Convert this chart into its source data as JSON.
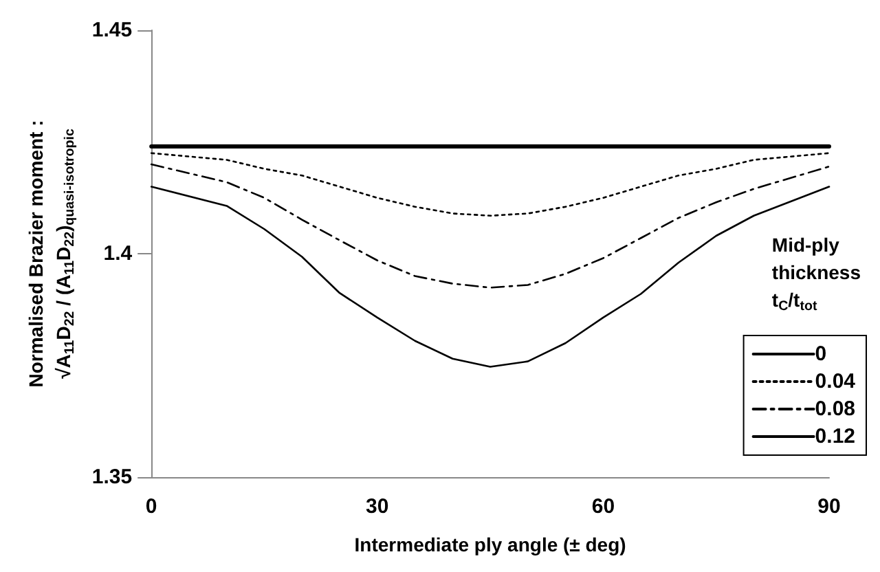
{
  "chart_data": {
    "type": "line",
    "xlabel": "Intermediate ply angle (± deg)",
    "ylabel": "Normalised Brazier moment :\n√A$_{11}$D$_{22}$ / (A$_{11}$D$_{22}$)$_{quasi-isotropic}$",
    "legend_title": "Mid-ply\nthickness\nt$_{C}$/t$_{tot}$",
    "x": [
      0,
      10,
      15,
      20,
      25,
      30,
      35,
      40,
      45,
      50,
      55,
      60,
      65,
      70,
      75,
      80,
      90
    ],
    "series": [
      {
        "name": "0",
        "color": "#000000",
        "line_style": "solid",
        "values": [
          1.424,
          1.424,
          1.424,
          1.424,
          1.424,
          1.424,
          1.424,
          1.424,
          1.424,
          1.424,
          1.424,
          1.424,
          1.424,
          1.424,
          1.424,
          1.424,
          1.424
        ]
      },
      {
        "name": "0.04",
        "color": "#000000",
        "line_style": "dotted",
        "values": [
          1.4225,
          1.421,
          1.419,
          1.4175,
          1.415,
          1.4125,
          1.4105,
          1.409,
          1.4085,
          1.409,
          1.4105,
          1.4125,
          1.415,
          1.4175,
          1.419,
          1.421,
          1.4225
        ]
      },
      {
        "name": "0.08",
        "color": "#000000",
        "line_style": "dashed",
        "values": [
          1.42,
          1.416,
          1.4125,
          1.4076,
          1.403,
          1.3985,
          1.395,
          1.3933,
          1.3924,
          1.393,
          1.3955,
          1.399,
          1.4035,
          1.408,
          1.4115,
          1.4145,
          1.4195
        ]
      },
      {
        "name": "0.12",
        "color": "#000000",
        "line_style": "solid",
        "values": [
          1.415,
          1.4107,
          1.4055,
          1.3993,
          1.3912,
          1.3857,
          1.3805,
          1.3765,
          1.3747,
          1.3759,
          1.38,
          1.3857,
          1.391,
          1.398,
          1.404,
          1.4085,
          1.415
        ]
      }
    ],
    "xlim": [
      0,
      90
    ],
    "xticks": [
      0,
      30,
      60,
      90
    ],
    "ylim": [
      1.35,
      1.45
    ],
    "yticks": [
      1.35,
      1.4,
      1.45
    ],
    "grid": false,
    "legend": "bottom right",
    "marker": "none"
  }
}
